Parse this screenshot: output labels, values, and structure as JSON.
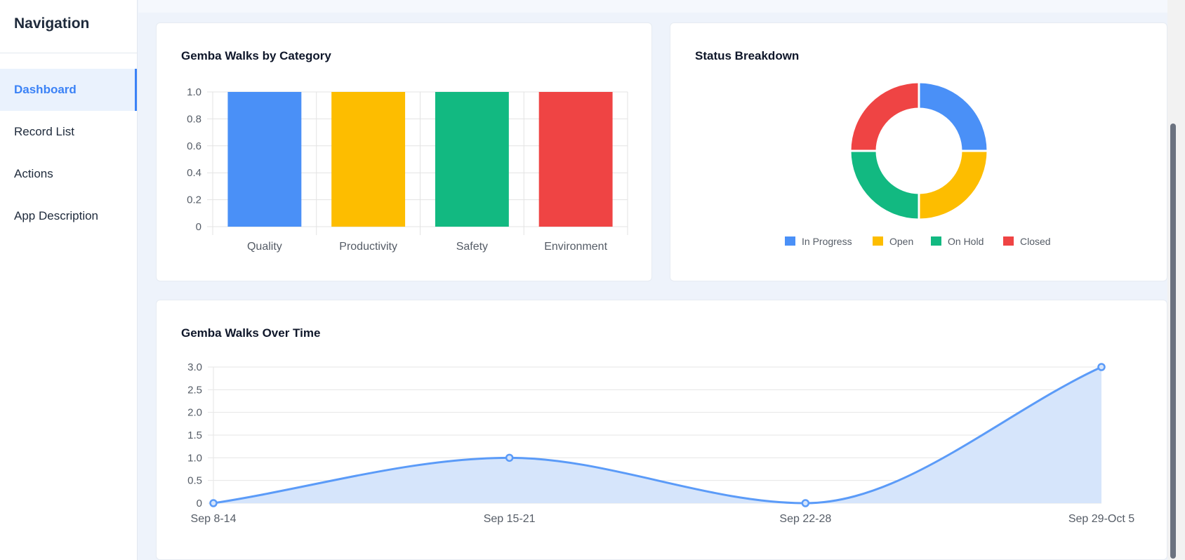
{
  "sidebar": {
    "title": "Navigation",
    "items": [
      {
        "label": "Dashboard",
        "active": true
      },
      {
        "label": "Record List",
        "active": false
      },
      {
        "label": "Actions",
        "active": false
      },
      {
        "label": "App Description",
        "active": false
      }
    ]
  },
  "colors": {
    "blue": "#3b82f6",
    "yellow": "#fbbf24",
    "green": "#10b981",
    "red": "#ef4444"
  },
  "chart_data": [
    {
      "type": "bar",
      "title": "Gemba Walks by Category",
      "categories": [
        "Quality",
        "Productivity",
        "Safety",
        "Environment"
      ],
      "values": [
        1,
        1,
        1,
        1
      ],
      "colors": [
        "#4a90f7",
        "#fdbd00",
        "#12b981",
        "#ef4444"
      ],
      "ylim": [
        0,
        1.0
      ],
      "yticks": [
        "0",
        "0.2",
        "0.4",
        "0.6",
        "0.8",
        "1.0"
      ],
      "grid": true,
      "legend": "none"
    },
    {
      "type": "pie",
      "title": "Status Breakdown",
      "labels": [
        "In Progress",
        "Open",
        "On Hold",
        "Closed"
      ],
      "values": [
        1,
        1,
        1,
        1
      ],
      "colors": [
        "#4a90f7",
        "#fdbd00",
        "#12b981",
        "#ef4444"
      ],
      "donut": true,
      "legend": "bottom"
    },
    {
      "type": "area",
      "title": "Gemba Walks Over Time",
      "x": [
        "Sep 8-14",
        "Sep 15-21",
        "Sep 22-28",
        "Sep 29-Oct 5"
      ],
      "values": [
        0,
        1,
        0,
        3
      ],
      "ylim": [
        0,
        3.0
      ],
      "yticks": [
        "0",
        "0.5",
        "1.0",
        "1.5",
        "2.0",
        "2.5",
        "3.0"
      ],
      "color": "#5b9bf8",
      "fill": "#d6e5fb",
      "grid": true,
      "legend": "none"
    }
  ]
}
